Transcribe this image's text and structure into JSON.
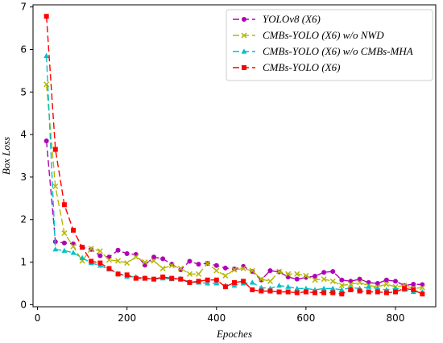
{
  "chart_data": {
    "type": "line",
    "xlabel": "Epoches",
    "ylabel": "Box Loss",
    "xlim": [
      -10,
      890
    ],
    "ylim": [
      -0.05,
      7.05
    ],
    "xticks": [
      0,
      200,
      400,
      600,
      800
    ],
    "yticks": [
      0,
      1,
      2,
      3,
      4,
      5,
      6,
      7
    ],
    "grid": false,
    "legend_position": "top-right",
    "x": [
      20,
      40,
      60,
      80,
      100,
      120,
      140,
      160,
      180,
      200,
      220,
      240,
      260,
      280,
      300,
      320,
      340,
      360,
      380,
      400,
      420,
      440,
      460,
      480,
      500,
      520,
      540,
      560,
      580,
      600,
      620,
      640,
      660,
      680,
      700,
      720,
      740,
      760,
      780,
      800,
      820,
      840,
      860
    ],
    "series": [
      {
        "name": "YOLOv8 (X6)",
        "color": "#b000b8",
        "dash": "8,4",
        "marker": "circle",
        "values": [
          3.85,
          1.48,
          1.45,
          1.43,
          1.35,
          1.3,
          1.15,
          1.12,
          1.28,
          1.2,
          1.18,
          0.93,
          1.12,
          1.08,
          0.95,
          0.82,
          1.02,
          0.95,
          0.97,
          0.92,
          0.86,
          0.84,
          0.9,
          0.78,
          0.58,
          0.8,
          0.77,
          0.65,
          0.6,
          0.64,
          0.67,
          0.76,
          0.78,
          0.58,
          0.55,
          0.6,
          0.52,
          0.5,
          0.58,
          0.55,
          0.45,
          0.48,
          0.47
        ]
      },
      {
        "name": "CMBs-YOLO (X6) w/o NWD",
        "color": "#b5b800",
        "dash": "8,4",
        "marker": "x",
        "values": [
          5.18,
          2.78,
          1.68,
          1.37,
          1.03,
          1.32,
          1.26,
          1.05,
          1.03,
          0.98,
          1.12,
          1.0,
          1.03,
          0.85,
          0.92,
          0.85,
          0.72,
          0.72,
          0.97,
          0.8,
          0.68,
          0.82,
          0.85,
          0.8,
          0.6,
          0.55,
          0.78,
          0.72,
          0.72,
          0.68,
          0.58,
          0.6,
          0.55,
          0.45,
          0.48,
          0.52,
          0.45,
          0.42,
          0.48,
          0.42,
          0.45,
          0.38,
          0.4
        ]
      },
      {
        "name": "CMBs-YOLO (X6) w/o CMBs-MHA",
        "color": "#00c0c8",
        "dash": "8,4",
        "marker": "triangle",
        "values": [
          5.85,
          1.3,
          1.27,
          1.22,
          1.1,
          0.98,
          0.92,
          0.83,
          0.73,
          0.66,
          0.65,
          0.62,
          0.6,
          0.62,
          0.6,
          0.61,
          0.53,
          0.52,
          0.5,
          0.5,
          0.45,
          0.45,
          0.5,
          0.52,
          0.4,
          0.38,
          0.45,
          0.42,
          0.38,
          0.38,
          0.35,
          0.38,
          0.38,
          0.35,
          0.4,
          0.38,
          0.42,
          0.38,
          0.35,
          0.38,
          0.35,
          0.3,
          0.3
        ]
      },
      {
        "name": "CMBs-YOLO (X6)",
        "color": "#ff0000",
        "dash": "8,4",
        "marker": "square",
        "values": [
          6.78,
          3.65,
          2.35,
          1.75,
          1.35,
          1.02,
          0.98,
          0.85,
          0.72,
          0.7,
          0.62,
          0.62,
          0.6,
          0.65,
          0.62,
          0.6,
          0.52,
          0.55,
          0.58,
          0.58,
          0.42,
          0.52,
          0.55,
          0.35,
          0.32,
          0.32,
          0.3,
          0.3,
          0.28,
          0.3,
          0.28,
          0.28,
          0.28,
          0.25,
          0.35,
          0.32,
          0.3,
          0.3,
          0.28,
          0.3,
          0.38,
          0.35,
          0.25
        ]
      }
    ]
  }
}
